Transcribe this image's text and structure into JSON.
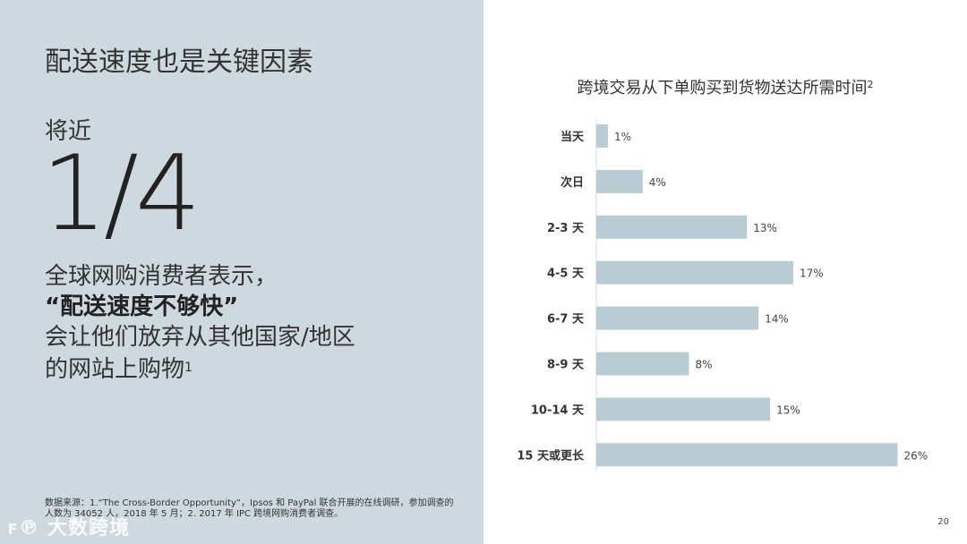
{
  "left": {
    "title": "配送速度也是关键因素",
    "stat_prefix": "将近",
    "stat_value": "1/4",
    "desc_line1": "全球网购消费者表示，",
    "desc_line2": "“配送速度不够快”",
    "desc_line3": "会让他们放弃从其他国家/地区",
    "desc_line4": "的网站上购物",
    "desc_footnote": "1",
    "source": "数据来源：1.“The Cross-Border Opportunity”，Ipsos 和 PayPal 联合开展的在线调研，参加调查的人数为 34052 人，2018 年 5 月；2. 2017 年 IPC 跨境网购消费者调查。",
    "watermark": "大数跨境"
  },
  "chart_data": {
    "type": "bar",
    "orientation": "horizontal",
    "title": "跨境交易从下单购买到货物送达所需时间",
    "title_footnote": "2",
    "categories": [
      "当天",
      "次日",
      "2-3 天",
      "4-5 天",
      "6-7 天",
      "8-9 天",
      "10-14 天",
      "15 天或更长"
    ],
    "values": [
      1,
      4,
      13,
      17,
      14,
      8,
      15,
      26
    ],
    "value_labels": [
      "1%",
      "4%",
      "13%",
      "17%",
      "14%",
      "8%",
      "15%",
      "26%"
    ],
    "unit": "%",
    "bar_color": "#b9cbd3",
    "grid": false,
    "legend": "none"
  },
  "page_number": "20"
}
